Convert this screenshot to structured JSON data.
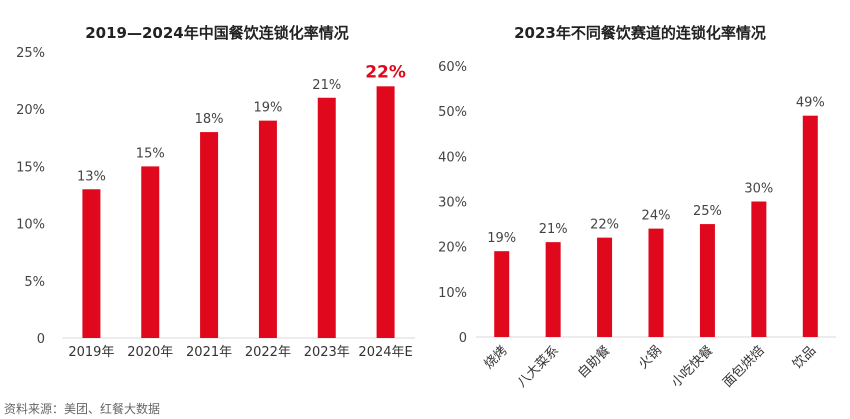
{
  "colors": {
    "bar": "#e0081c",
    "highlight_label": "#e0081c",
    "axis": "#d9d9d9"
  },
  "source_text": "资料来源：美团、红餐大数据",
  "chart_data": [
    {
      "type": "bar",
      "title": "2019—2024年中国餐饮连锁化率情况",
      "categories": [
        "2019年",
        "2020年",
        "2021年",
        "2022年",
        "2023年",
        "2024年E"
      ],
      "values": [
        13,
        15,
        18,
        19,
        21,
        22
      ],
      "data_labels": [
        "13%",
        "15%",
        "18%",
        "19%",
        "21%",
        "22%"
      ],
      "highlight_index": 5,
      "ylim": [
        0,
        25
      ],
      "yticks": [
        "0",
        "5%",
        "10%",
        "15%",
        "20%",
        "25%"
      ],
      "xlabel": "",
      "ylabel": "",
      "grid": false
    },
    {
      "type": "bar",
      "title": "2023年不同餐饮赛道的连锁化率情况",
      "categories": [
        "烧烤",
        "八大菜系",
        "自助餐",
        "火锅",
        "小吃快餐",
        "面包烘焙",
        "饮品"
      ],
      "values": [
        19,
        21,
        22,
        24,
        25,
        30,
        49
      ],
      "data_labels": [
        "19%",
        "21%",
        "22%",
        "24%",
        "25%",
        "30%",
        "49%"
      ],
      "ylim": [
        0,
        60
      ],
      "yticks": [
        "0",
        "10%",
        "20%",
        "30%",
        "40%",
        "50%",
        "60%"
      ],
      "xlabel": "",
      "ylabel": "",
      "grid": false
    }
  ]
}
